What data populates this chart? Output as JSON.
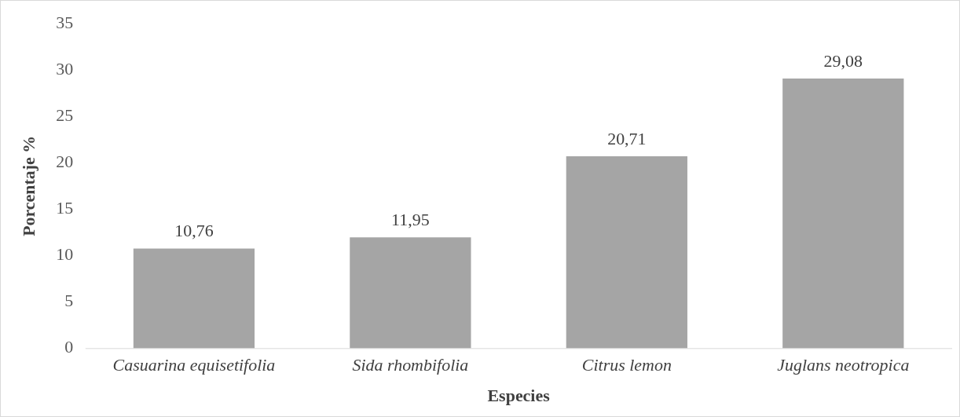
{
  "chart_data": {
    "type": "bar",
    "xlabel": "Especies",
    "ylabel": "Porcentaje %",
    "categories": [
      "Casuarina equisetifolia",
      "Sida rhombifolia",
      "Citrus lemon",
      "Juglans neotropica"
    ],
    "values": [
      10.76,
      11.95,
      20.71,
      29.08
    ],
    "value_labels": [
      "10,76",
      "11,95",
      "20,71",
      "29,08"
    ],
    "color": "#a5a5a5",
    "ylim": [
      0,
      35
    ],
    "yticks": [
      0,
      5,
      10,
      15,
      20,
      25,
      30,
      35
    ],
    "grid": false,
    "legend": false
  }
}
